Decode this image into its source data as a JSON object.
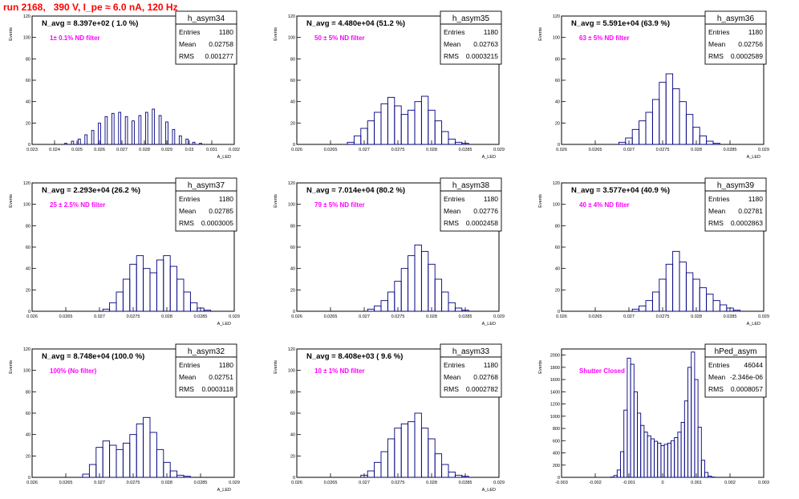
{
  "page_title": "run 2168,   390 V, I_pe ≈ 6.0 nA, 120 Hz",
  "colors": {
    "hist": "#000080",
    "nd_label": "#ff00ff",
    "title": "#ff0000"
  },
  "stats_labels": {
    "entries": "Entries",
    "mean": "Mean",
    "rms": "RMS"
  },
  "chart_data": [
    {
      "type": "bar",
      "name": "h_asym34",
      "title": "N_avg = 8.397e+02 ( 1.0 %)",
      "filter": "1± 0.1% ND filter",
      "stats": {
        "entries": "1180",
        "mean": "0.02758",
        "rms": "0.001277"
      },
      "ylabel": "Events",
      "xlabel": "A_LED",
      "xlim": [
        0.023,
        0.032
      ],
      "ylim": [
        0,
        120
      ],
      "xticks": [
        0.023,
        0.024,
        0.025,
        0.026,
        0.027,
        0.028,
        0.029,
        0.03,
        0.031,
        0.032
      ],
      "xtick_labels": [
        "0.023",
        "0.024",
        "0.025",
        "0.026",
        "0.027",
        "0.028",
        "0.029",
        "0.03",
        "0.031",
        "0.032"
      ],
      "yticks": [
        0,
        20,
        40,
        60,
        80,
        100,
        120
      ],
      "ytick_labels": [
        "0",
        "20",
        "40",
        "60",
        "80",
        "100",
        "120"
      ],
      "bins": [
        [
          0.0235,
          0
        ],
        [
          0.0242,
          0
        ],
        [
          0.0245,
          1
        ],
        [
          0.0248,
          3
        ],
        [
          0.0251,
          5
        ],
        [
          0.0254,
          9
        ],
        [
          0.0257,
          13
        ],
        [
          0.026,
          20
        ],
        [
          0.0263,
          26
        ],
        [
          0.0266,
          29
        ],
        [
          0.0269,
          30
        ],
        [
          0.0272,
          26
        ],
        [
          0.0275,
          22
        ],
        [
          0.0278,
          27
        ],
        [
          0.0281,
          30
        ],
        [
          0.0284,
          33
        ],
        [
          0.0287,
          27
        ],
        [
          0.029,
          21
        ],
        [
          0.0293,
          14
        ],
        [
          0.0296,
          8
        ],
        [
          0.0299,
          5
        ],
        [
          0.0302,
          2
        ],
        [
          0.0305,
          1
        ],
        [
          0.031,
          0
        ]
      ]
    },
    {
      "type": "bar",
      "name": "h_asym35",
      "title": "N_avg = 4.480e+04 (51.2 %)",
      "filter": "50 ± 5% ND filter",
      "stats": {
        "entries": "1180",
        "mean": "0.02763",
        "rms": "0.0003215"
      },
      "ylabel": "Events",
      "xlabel": "A_LED",
      "xlim": [
        0.026,
        0.029
      ],
      "ylim": [
        0,
        120
      ],
      "xticks": [
        0.026,
        0.0265,
        0.027,
        0.0275,
        0.028,
        0.0285,
        0.029
      ],
      "xtick_labels": [
        "0.026",
        "0.0265",
        "0.027",
        "0.0275",
        "0.028",
        "0.0285",
        "0.029"
      ],
      "yticks": [
        0,
        20,
        40,
        60,
        80,
        100,
        120
      ],
      "ytick_labels": [
        "0",
        "20",
        "40",
        "60",
        "80",
        "100",
        "120"
      ],
      "bins": [
        [
          0.0268,
          2
        ],
        [
          0.0269,
          8
        ],
        [
          0.027,
          15
        ],
        [
          0.0271,
          22
        ],
        [
          0.0272,
          30
        ],
        [
          0.0273,
          38
        ],
        [
          0.0274,
          44
        ],
        [
          0.0275,
          36
        ],
        [
          0.0276,
          28
        ],
        [
          0.0277,
          32
        ],
        [
          0.0278,
          40
        ],
        [
          0.0279,
          45
        ],
        [
          0.028,
          32
        ],
        [
          0.0281,
          22
        ],
        [
          0.0282,
          12
        ],
        [
          0.0283,
          5
        ],
        [
          0.0284,
          2
        ],
        [
          0.0285,
          1
        ]
      ]
    },
    {
      "type": "bar",
      "name": "h_asym36",
      "title": "N_avg = 5.591e+04 (63.9 %)",
      "filter": "63 ± 5% ND filter",
      "stats": {
        "entries": "1180",
        "mean": "0.02756",
        "rms": "0.0002589"
      },
      "ylabel": "Events",
      "xlabel": "A_LED",
      "xlim": [
        0.026,
        0.029
      ],
      "ylim": [
        0,
        120
      ],
      "xticks": [
        0.026,
        0.0265,
        0.027,
        0.0275,
        0.028,
        0.0285,
        0.029
      ],
      "xtick_labels": [
        "0.026",
        "0.0265",
        "0.027",
        "0.0275",
        "0.028",
        "0.0285",
        "0.029"
      ],
      "yticks": [
        0,
        20,
        40,
        60,
        80,
        100,
        120
      ],
      "ytick_labels": [
        "0",
        "20",
        "40",
        "60",
        "80",
        "100",
        "120"
      ],
      "bins": [
        [
          0.0269,
          2
        ],
        [
          0.027,
          6
        ],
        [
          0.0271,
          14
        ],
        [
          0.0272,
          22
        ],
        [
          0.0273,
          30
        ],
        [
          0.0274,
          42
        ],
        [
          0.0275,
          58
        ],
        [
          0.0276,
          66
        ],
        [
          0.0277,
          52
        ],
        [
          0.0278,
          40
        ],
        [
          0.0279,
          28
        ],
        [
          0.028,
          16
        ],
        [
          0.0281,
          8
        ],
        [
          0.0282,
          3
        ],
        [
          0.0283,
          1
        ]
      ]
    },
    {
      "type": "bar",
      "name": "h_asym37",
      "title": "N_avg = 2.293e+04 (26.2 %)",
      "filter": "25 ± 2.5% ND filter",
      "stats": {
        "entries": "1180",
        "mean": "0.02785",
        "rms": "0.0003005"
      },
      "ylabel": "Events",
      "xlabel": "A_LED",
      "xlim": [
        0.026,
        0.029
      ],
      "ylim": [
        0,
        120
      ],
      "xticks": [
        0.026,
        0.0265,
        0.027,
        0.0275,
        0.028,
        0.0285,
        0.029
      ],
      "xtick_labels": [
        "0.026",
        "0.0265",
        "0.027",
        "0.0275",
        "0.028",
        "0.0285",
        "0.029"
      ],
      "yticks": [
        0,
        20,
        40,
        60,
        80,
        100,
        120
      ],
      "ytick_labels": [
        "0",
        "20",
        "40",
        "60",
        "80",
        "100",
        "120"
      ],
      "bins": [
        [
          0.0271,
          2
        ],
        [
          0.0272,
          8
        ],
        [
          0.0273,
          18
        ],
        [
          0.0274,
          30
        ],
        [
          0.0275,
          44
        ],
        [
          0.0276,
          52
        ],
        [
          0.0277,
          40
        ],
        [
          0.0278,
          36
        ],
        [
          0.0279,
          48
        ],
        [
          0.028,
          52
        ],
        [
          0.0281,
          42
        ],
        [
          0.0282,
          30
        ],
        [
          0.0283,
          18
        ],
        [
          0.0284,
          8
        ],
        [
          0.0285,
          3
        ],
        [
          0.0286,
          1
        ]
      ]
    },
    {
      "type": "bar",
      "name": "h_asym38",
      "title": "N_avg = 7.014e+04 (80.2 %)",
      "filter": "79 ± 5% ND filter",
      "stats": {
        "entries": "1180",
        "mean": "0.02776",
        "rms": "0.0002458"
      },
      "ylabel": "Events",
      "xlabel": "A_LED",
      "xlim": [
        0.026,
        0.029
      ],
      "ylim": [
        0,
        120
      ],
      "xticks": [
        0.026,
        0.0265,
        0.027,
        0.0275,
        0.028,
        0.0285,
        0.029
      ],
      "xtick_labels": [
        "0.026",
        "0.0265",
        "0.027",
        "0.0275",
        "0.028",
        "0.0285",
        "0.029"
      ],
      "yticks": [
        0,
        20,
        40,
        60,
        80,
        100,
        120
      ],
      "ytick_labels": [
        "0",
        "20",
        "40",
        "60",
        "80",
        "100",
        "120"
      ],
      "bins": [
        [
          0.0271,
          2
        ],
        [
          0.0272,
          5
        ],
        [
          0.0273,
          10
        ],
        [
          0.0274,
          18
        ],
        [
          0.0275,
          28
        ],
        [
          0.0276,
          40
        ],
        [
          0.0277,
          52
        ],
        [
          0.0278,
          62
        ],
        [
          0.0279,
          56
        ],
        [
          0.028,
          44
        ],
        [
          0.0281,
          30
        ],
        [
          0.0282,
          18
        ],
        [
          0.0283,
          8
        ],
        [
          0.0284,
          3
        ],
        [
          0.0285,
          1
        ]
      ]
    },
    {
      "type": "bar",
      "name": "h_asym39",
      "title": "N_avg = 3.577e+04 (40.9 %)",
      "filter": "40 ± 4% ND filter",
      "stats": {
        "entries": "1180",
        "mean": "0.02781",
        "rms": "0.0002863"
      },
      "ylabel": "Events",
      "xlabel": "A_LED",
      "xlim": [
        0.026,
        0.029
      ],
      "ylim": [
        0,
        120
      ],
      "xticks": [
        0.026,
        0.0265,
        0.027,
        0.0275,
        0.028,
        0.0285,
        0.029
      ],
      "xtick_labels": [
        "0.026",
        "0.0265",
        "0.027",
        "0.0275",
        "0.028",
        "0.0285",
        "0.029"
      ],
      "yticks": [
        0,
        20,
        40,
        60,
        80,
        100,
        120
      ],
      "ytick_labels": [
        "0",
        "20",
        "40",
        "60",
        "80",
        "100",
        "120"
      ],
      "bins": [
        [
          0.0271,
          2
        ],
        [
          0.0272,
          5
        ],
        [
          0.0273,
          10
        ],
        [
          0.0274,
          18
        ],
        [
          0.0275,
          30
        ],
        [
          0.0276,
          44
        ],
        [
          0.0277,
          56
        ],
        [
          0.0278,
          46
        ],
        [
          0.0279,
          36
        ],
        [
          0.028,
          30
        ],
        [
          0.0281,
          22
        ],
        [
          0.0282,
          16
        ],
        [
          0.0283,
          10
        ],
        [
          0.0284,
          6
        ],
        [
          0.0285,
          3
        ],
        [
          0.0286,
          1
        ]
      ]
    },
    {
      "type": "bar",
      "name": "h_asym32",
      "title": "N_avg = 8.748e+04 (100.0 %)",
      "filter": "100% (No filter)",
      "stats": {
        "entries": "1180",
        "mean": "0.02751",
        "rms": "0.0003118"
      },
      "ylabel": "Events",
      "xlabel": "A_LED",
      "xlim": [
        0.026,
        0.029
      ],
      "ylim": [
        0,
        120
      ],
      "xticks": [
        0.026,
        0.0265,
        0.027,
        0.0275,
        0.028,
        0.0285,
        0.029
      ],
      "xtick_labels": [
        "0.026",
        "0.0265",
        "0.027",
        "0.0275",
        "0.028",
        "0.0285",
        "0.029"
      ],
      "yticks": [
        0,
        20,
        40,
        60,
        80,
        100,
        120
      ],
      "ytick_labels": [
        "0",
        "20",
        "40",
        "60",
        "80",
        "100",
        "120"
      ],
      "bins": [
        [
          0.0268,
          3
        ],
        [
          0.0269,
          12
        ],
        [
          0.027,
          28
        ],
        [
          0.0271,
          34
        ],
        [
          0.0272,
          30
        ],
        [
          0.0273,
          26
        ],
        [
          0.0274,
          32
        ],
        [
          0.0275,
          40
        ],
        [
          0.0276,
          50
        ],
        [
          0.0277,
          56
        ],
        [
          0.0278,
          42
        ],
        [
          0.0279,
          26
        ],
        [
          0.028,
          14
        ],
        [
          0.0281,
          6
        ],
        [
          0.0282,
          2
        ],
        [
          0.0283,
          1
        ]
      ]
    },
    {
      "type": "bar",
      "name": "h_asym33",
      "title": "N_avg = 8.408e+03 ( 9.6 %)",
      "filter": "10 ± 1% ND filter",
      "stats": {
        "entries": "1180",
        "mean": "0.02768",
        "rms": "0.0002782"
      },
      "ylabel": "Events",
      "xlabel": "A_LED",
      "xlim": [
        0.026,
        0.029
      ],
      "ylim": [
        0,
        120
      ],
      "xticks": [
        0.026,
        0.0265,
        0.027,
        0.0275,
        0.028,
        0.0285,
        0.029
      ],
      "xtick_labels": [
        "0.026",
        "0.0265",
        "0.027",
        "0.0275",
        "0.028",
        "0.0285",
        "0.029"
      ],
      "yticks": [
        0,
        20,
        40,
        60,
        80,
        100,
        120
      ],
      "ytick_labels": [
        "0",
        "20",
        "40",
        "60",
        "80",
        "100",
        "120"
      ],
      "bins": [
        [
          0.027,
          2
        ],
        [
          0.0271,
          6
        ],
        [
          0.0272,
          14
        ],
        [
          0.0273,
          24
        ],
        [
          0.0274,
          36
        ],
        [
          0.0275,
          46
        ],
        [
          0.0276,
          50
        ],
        [
          0.0277,
          52
        ],
        [
          0.0278,
          60
        ],
        [
          0.0279,
          46
        ],
        [
          0.028,
          36
        ],
        [
          0.0281,
          22
        ],
        [
          0.0282,
          12
        ],
        [
          0.0283,
          5
        ],
        [
          0.0284,
          2
        ],
        [
          0.0285,
          1
        ]
      ]
    },
    {
      "type": "bar",
      "name": "hPed_asym",
      "title": "",
      "filter": "Shutter Closed",
      "stats": {
        "entries": "46044",
        "mean": "-2.346e-06",
        "rms": "0.0008057"
      },
      "ylabel": "Events",
      "xlabel": "",
      "xlim": [
        -0.003,
        0.003
      ],
      "ylim": [
        0,
        2100
      ],
      "xticks": [
        -0.003,
        -0.002,
        -0.001,
        0,
        0.001,
        0.002,
        0.003
      ],
      "xtick_labels": [
        "-0.003",
        "-0.002",
        "-0.001",
        "0",
        "0.001",
        "0.002",
        "0.003"
      ],
      "yticks": [
        0,
        200,
        400,
        600,
        800,
        1000,
        1200,
        1400,
        1600,
        1800,
        2000
      ],
      "ytick_labels": [
        "0",
        "200",
        "400",
        "600",
        "800",
        "1000",
        "1200",
        "1400",
        "1600",
        "1800",
        "2000"
      ],
      "bins": [
        [
          -0.0015,
          5
        ],
        [
          -0.0014,
          30
        ],
        [
          -0.0013,
          120
        ],
        [
          -0.0012,
          420
        ],
        [
          -0.0011,
          1100
        ],
        [
          -0.001,
          1950
        ],
        [
          -0.0009,
          1850
        ],
        [
          -0.0008,
          1400
        ],
        [
          -0.0007,
          1050
        ],
        [
          -0.0006,
          850
        ],
        [
          -0.0005,
          740
        ],
        [
          -0.0004,
          680
        ],
        [
          -0.0003,
          630
        ],
        [
          -0.0002,
          590
        ],
        [
          -0.0001,
          560
        ],
        [
          0,
          520
        ],
        [
          0.0001,
          540
        ],
        [
          0.0002,
          560
        ],
        [
          0.0003,
          600
        ],
        [
          0.0004,
          650
        ],
        [
          0.0005,
          740
        ],
        [
          0.0006,
          900
        ],
        [
          0.0007,
          1250
        ],
        [
          0.0008,
          1800
        ],
        [
          0.0009,
          2050
        ],
        [
          0.001,
          1600
        ],
        [
          0.0011,
          820
        ],
        [
          0.0012,
          280
        ],
        [
          0.0013,
          80
        ],
        [
          0.0014,
          20
        ],
        [
          0.0015,
          5
        ]
      ]
    }
  ]
}
